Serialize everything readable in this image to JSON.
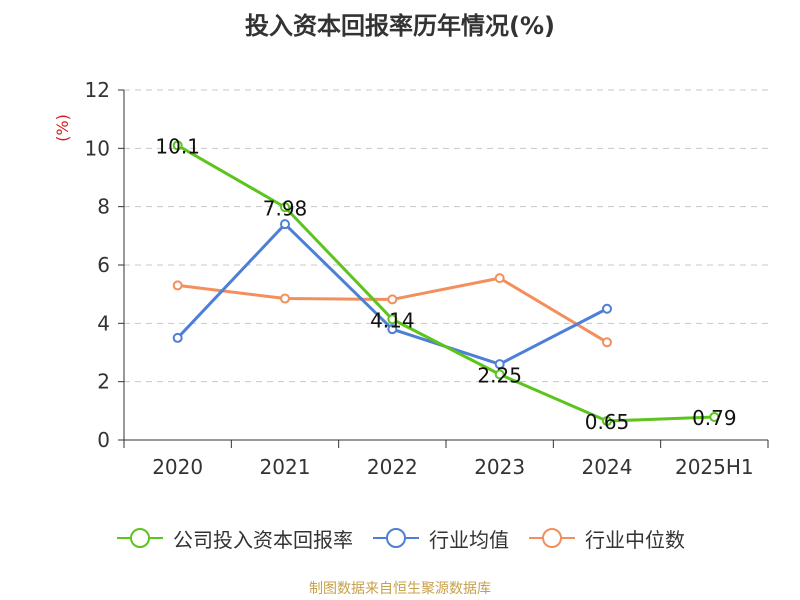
{
  "title": "投入资本回报率历年情况(%)",
  "footer": "制图数据来自恒生聚源数据库",
  "chart_data": {
    "type": "line",
    "categories": [
      "2020",
      "2021",
      "2022",
      "2023",
      "2024",
      "2025H1"
    ],
    "ylabel": "(%)",
    "ylim": [
      0,
      12
    ],
    "yticks": [
      0,
      2,
      4,
      6,
      8,
      10,
      12
    ],
    "grid": true,
    "legend_position": "bottom",
    "series": [
      {
        "name": "公司投入资本回报率",
        "color": "#5cc41d",
        "values": [
          10.1,
          7.98,
          4.14,
          2.25,
          0.65,
          0.79
        ],
        "labels": [
          "10.1",
          "7.98",
          "4.14",
          "2.25",
          "0.65",
          "0.79"
        ]
      },
      {
        "name": "行业均值",
        "color": "#4e7fd6",
        "values": [
          3.5,
          7.4,
          3.8,
          2.6,
          4.5,
          null
        ]
      },
      {
        "name": "行业中位数",
        "color": "#f28f5c",
        "values": [
          5.3,
          4.85,
          4.82,
          5.55,
          3.35,
          null
        ]
      }
    ]
  }
}
